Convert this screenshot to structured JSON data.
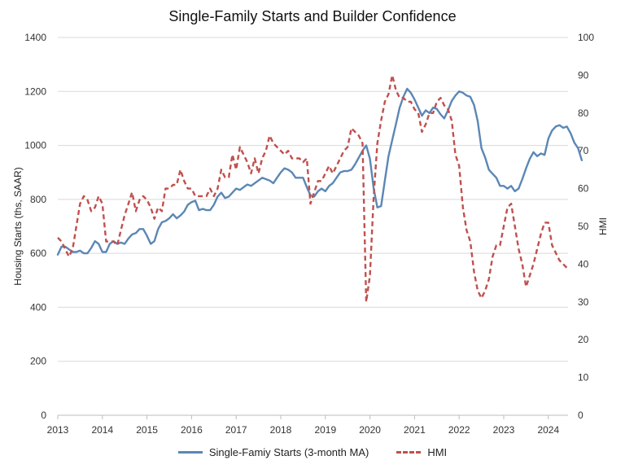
{
  "chart_data": {
    "type": "line",
    "title": "Single-Family Starts and Builder Confidence",
    "xlabel": "",
    "ylabel": "Housing Starts (ths, SAAR)",
    "y2label": "HMI",
    "x_ticks": [
      "2013",
      "2014",
      "2015",
      "2016",
      "2017",
      "2018",
      "2019",
      "2020",
      "2021",
      "2022",
      "2023",
      "2024"
    ],
    "ylim": [
      0,
      1400
    ],
    "y_ticks": [
      "0",
      "200",
      "400",
      "600",
      "800",
      "1000",
      "1200",
      "1400"
    ],
    "y2lim": [
      0,
      100
    ],
    "y2_ticks": [
      "0",
      "10",
      "20",
      "30",
      "40",
      "50",
      "60",
      "70",
      "80",
      "90",
      "100"
    ],
    "grid": true,
    "legend_position": "bottom",
    "x_start_year": 2013,
    "series": [
      {
        "name": "Single-Famiy Starts (3-month MA)",
        "axis": "left",
        "color": "#5b87b5",
        "style": "solid",
        "values": [
          595,
          625,
          625,
          615,
          605,
          605,
          610,
          600,
          600,
          620,
          645,
          635,
          605,
          605,
          635,
          645,
          635,
          640,
          635,
          655,
          670,
          675,
          690,
          690,
          665,
          635,
          645,
          690,
          715,
          720,
          730,
          745,
          730,
          740,
          755,
          780,
          790,
          795,
          760,
          765,
          760,
          760,
          780,
          810,
          825,
          805,
          810,
          825,
          840,
          835,
          845,
          855,
          850,
          860,
          870,
          880,
          875,
          870,
          860,
          880,
          900,
          915,
          910,
          900,
          880,
          880,
          880,
          845,
          815,
          810,
          830,
          840,
          830,
          850,
          860,
          880,
          900,
          905,
          905,
          910,
          930,
          955,
          980,
          1000,
          950,
          840,
          770,
          775,
          870,
          960,
          1020,
          1080,
          1140,
          1180,
          1210,
          1195,
          1170,
          1140,
          1110,
          1130,
          1120,
          1140,
          1135,
          1115,
          1100,
          1130,
          1165,
          1185,
          1200,
          1195,
          1185,
          1180,
          1150,
          1090,
          990,
          955,
          910,
          895,
          880,
          850,
          850,
          840,
          850,
          830,
          840,
          875,
          915,
          950,
          975,
          960,
          970,
          965,
          1025,
          1055,
          1070,
          1075,
          1065,
          1070,
          1045,
          1010,
          990,
          945
        ]
      },
      {
        "name": "HMI",
        "axis": "right",
        "color": "#c0504d",
        "style": "dashed",
        "values": [
          47,
          46,
          44,
          42,
          44,
          50,
          56,
          58,
          57,
          54,
          55,
          58,
          56,
          46,
          46,
          46,
          45,
          49,
          53,
          56,
          59,
          54,
          57,
          58,
          57,
          55,
          52,
          55,
          54,
          60,
          60,
          61,
          61,
          65,
          62,
          60,
          60,
          58,
          58,
          58,
          58,
          60,
          58,
          60,
          65,
          63,
          63,
          69,
          65,
          71,
          69,
          67,
          64,
          68,
          64,
          68,
          70,
          74,
          72,
          71,
          70,
          69,
          70,
          68,
          68,
          68,
          67,
          68,
          56,
          59,
          62,
          62,
          64,
          66,
          64,
          66,
          68,
          70,
          71,
          76,
          75,
          74,
          72,
          30,
          37,
          58,
          72,
          78,
          83,
          85,
          90,
          86,
          84,
          84,
          83,
          83,
          81,
          80,
          75,
          77,
          80,
          80,
          83,
          84,
          82,
          81,
          78,
          69,
          66,
          55,
          49,
          46,
          38,
          33,
          31,
          33,
          36,
          42,
          45,
          45,
          50,
          55,
          56,
          50,
          44,
          40,
          34,
          37,
          40,
          44,
          48,
          51,
          51,
          45,
          43,
          41,
          40,
          39
        ]
      }
    ]
  }
}
